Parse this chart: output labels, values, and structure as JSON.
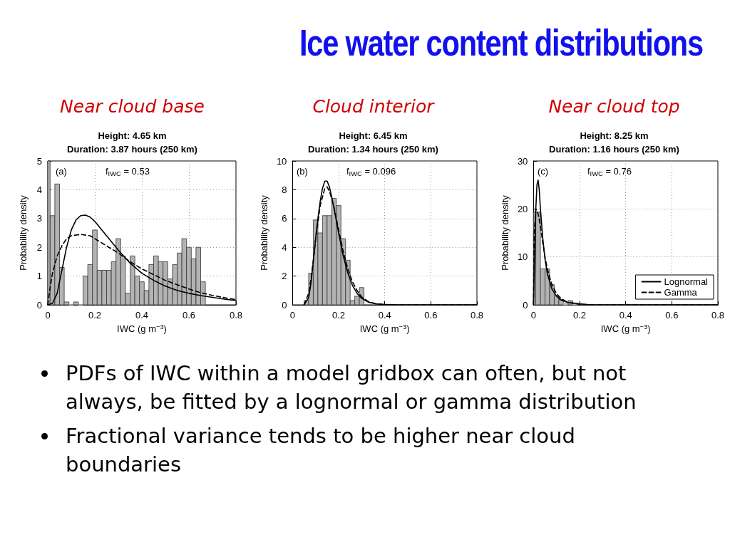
{
  "chart_data": [
    {
      "type": "other",
      "title": "Ice water content distributions"
    },
    {
      "type": "histogram",
      "title": "Near cloud base",
      "subtitle": "Height: 4.65 km\nDuration: 3.87 hours (250 km)",
      "xlabel": "IWC (g m$^{−3}$)",
      "ylabel": "Probability density",
      "annotations": [
        "(a)",
        "f$_{IWC}$ = 0.53"
      ],
      "color": "#b3b3b3",
      "bins": [
        0,
        0.01,
        0.03,
        0.05,
        0.07,
        0.09,
        0.11,
        0.13,
        0.15,
        0.17,
        0.19,
        0.21,
        0.23,
        0.25,
        0.27,
        0.29,
        0.31,
        0.33,
        0.35,
        0.37,
        0.39,
        0.41,
        0.43,
        0.45,
        0.47,
        0.49,
        0.51,
        0.53,
        0.55,
        0.57,
        0.59,
        0.61,
        0.63,
        0.65,
        0.67
      ],
      "values": [
        5,
        3.1,
        4.2,
        1.3,
        0.1,
        0,
        0.1,
        0,
        1.0,
        1.4,
        2.6,
        1.2,
        1.2,
        1.2,
        1.5,
        2.3,
        1.7,
        0.4,
        1.7,
        1.0,
        0.8,
        0.5,
        1.4,
        1.7,
        1.5,
        1.5,
        0.9,
        1.4,
        1.8,
        2.3,
        2.0,
        1.6,
        2.0,
        0.8
      ],
      "series": [
        {
          "type": "line",
          "color": "#000000",
          "line_style": "solid",
          "x": [
            0,
            0.02,
            0.04,
            0.06,
            0.08,
            0.1,
            0.12,
            0.14,
            0.16,
            0.18,
            0.2,
            0.22,
            0.25,
            0.3,
            0.35,
            0.4,
            0.45,
            0.5,
            0.55,
            0.6,
            0.65,
            0.7,
            0.75,
            0.8
          ],
          "values": [
            0,
            0.05,
            0.4,
            1.2,
            2.0,
            2.6,
            2.95,
            3.1,
            3.12,
            3.05,
            2.9,
            2.7,
            2.4,
            1.9,
            1.45,
            1.1,
            0.85,
            0.65,
            0.5,
            0.4,
            0.32,
            0.26,
            0.2,
            0.15
          ]
        },
        {
          "type": "line",
          "color": "#000000",
          "line_style": "dashed",
          "x": [
            0,
            0.01,
            0.02,
            0.04,
            0.06,
            0.08,
            0.1,
            0.14,
            0.18,
            0.22,
            0.26,
            0.3,
            0.35,
            0.4,
            0.45,
            0.5,
            0.55,
            0.6,
            0.65,
            0.7,
            0.75,
            0.8
          ],
          "values": [
            0,
            0.6,
            1.1,
            1.7,
            2.05,
            2.3,
            2.4,
            2.45,
            2.4,
            2.2,
            2.0,
            1.8,
            1.5,
            1.25,
            1.05,
            0.85,
            0.7,
            0.55,
            0.42,
            0.33,
            0.25,
            0.18
          ]
        }
      ],
      "xlim": [
        0,
        0.8
      ],
      "xticks": [
        0,
        0.2,
        0.4,
        0.6,
        0.8
      ],
      "ylim": [
        0,
        5
      ],
      "yticks": [
        0,
        1,
        2,
        3,
        4,
        5
      ],
      "grid": true,
      "legend": false
    },
    {
      "type": "histogram",
      "title": "Cloud interior",
      "subtitle": "Height: 6.45 km\nDuration: 1.34 hours (250 km)",
      "xlabel": "IWC (g m$^{−3}$)",
      "ylabel": "Probability density",
      "annotations": [
        "(b)",
        "f$_{IWC}$ = 0.096"
      ],
      "color": "#b3b3b3",
      "bins": [
        0.05,
        0.07,
        0.09,
        0.11,
        0.13,
        0.15,
        0.17,
        0.19,
        0.21,
        0.23,
        0.25,
        0.27,
        0.29,
        0.31
      ],
      "values": [
        0.3,
        2.2,
        5.9,
        5.0,
        6.2,
        6.2,
        7.4,
        6.9,
        4.6,
        3.1,
        0.3,
        0.6,
        1.2
      ],
      "series": [
        {
          "type": "line",
          "color": "#000000",
          "line_style": "solid",
          "x": [
            0.05,
            0.07,
            0.08,
            0.09,
            0.1,
            0.11,
            0.12,
            0.13,
            0.14,
            0.15,
            0.16,
            0.17,
            0.18,
            0.2,
            0.22,
            0.24,
            0.26,
            0.28,
            0.3,
            0.33,
            0.36,
            0.4,
            0.45,
            0.8
          ],
          "values": [
            0,
            0.5,
            1.5,
            3.0,
            4.6,
            6.0,
            7.2,
            8.1,
            8.6,
            8.6,
            8.2,
            7.5,
            6.7,
            5.0,
            3.4,
            2.2,
            1.35,
            0.8,
            0.45,
            0.18,
            0.07,
            0.02,
            0,
            0
          ]
        },
        {
          "type": "line",
          "color": "#000000",
          "line_style": "dashed",
          "x": [
            0.05,
            0.07,
            0.08,
            0.09,
            0.1,
            0.12,
            0.14,
            0.15,
            0.16,
            0.18,
            0.2,
            0.22,
            0.24,
            0.26,
            0.28,
            0.3,
            0.33,
            0.36,
            0.4,
            0.45,
            0.8
          ],
          "values": [
            0,
            0.8,
            1.8,
            3.1,
            4.5,
            6.9,
            8.1,
            8.2,
            7.9,
            6.8,
            5.2,
            3.7,
            2.5,
            1.6,
            1.0,
            0.55,
            0.22,
            0.08,
            0.02,
            0,
            0
          ]
        }
      ],
      "xlim": [
        0,
        0.8
      ],
      "xticks": [
        0,
        0.2,
        0.4,
        0.6,
        0.8
      ],
      "ylim": [
        0,
        10
      ],
      "yticks": [
        0,
        2,
        4,
        6,
        8,
        10
      ],
      "grid": true,
      "legend": false
    },
    {
      "type": "histogram",
      "title": "Near cloud top",
      "subtitle": "Height: 8.25 km\nDuration: 1.16 hours (250 km)",
      "xlabel": "IWC (g m$^{−3}$)",
      "ylabel": "Probability density",
      "annotations": [
        "(c)",
        "f$_{IWC}$ = 0.76"
      ],
      "color": "#b3b3b3",
      "bins": [
        0,
        0.01,
        0.03,
        0.05,
        0.07,
        0.09,
        0.11,
        0.13,
        0.15,
        0.17,
        0.19
      ],
      "values": [
        19.3,
        19.3,
        7.5,
        7.5,
        4.2,
        1.9,
        1.1,
        0.4,
        0.9,
        0.1
      ],
      "series": [
        {
          "type": "line",
          "name": "Lognormal",
          "color": "#000000",
          "line_style": "solid",
          "x": [
            0,
            0.005,
            0.01,
            0.015,
            0.02,
            0.025,
            0.03,
            0.04,
            0.05,
            0.06,
            0.08,
            0.1,
            0.12,
            0.15,
            0.2,
            0.25,
            0.3,
            0.8
          ],
          "values": [
            0,
            10,
            20,
            25,
            26,
            24,
            20,
            14,
            9.5,
            6.5,
            3.3,
            1.8,
            1.0,
            0.5,
            0.2,
            0,
            0,
            0
          ]
        },
        {
          "type": "line",
          "name": "Gamma",
          "color": "#000000",
          "line_style": "dashed",
          "x": [
            0,
            0.003,
            0.01,
            0.02,
            0.03,
            0.04,
            0.05,
            0.06,
            0.08,
            0.1,
            0.12,
            0.15,
            0.2,
            0.25,
            0.3,
            0.8
          ],
          "values": [
            0,
            15,
            20,
            19,
            16.5,
            13,
            10,
            7.5,
            4.2,
            2.3,
            1.3,
            0.5,
            0.1,
            0,
            0,
            0
          ]
        }
      ],
      "xlim": [
        0,
        0.8
      ],
      "xticks": [
        0,
        0.2,
        0.4,
        0.6,
        0.8
      ],
      "ylim": [
        0,
        30
      ],
      "yticks": [
        0,
        10,
        20,
        30
      ],
      "grid": true,
      "legend": "bottom right"
    },
    {
      "type": "other",
      "annotations": [
        "PDFs of IWC within a model gridbox can often, but not always, be fitted by a lognormal or gamma distribution",
        "Fractional variance tends to be higher near cloud boundaries"
      ]
    }
  ]
}
